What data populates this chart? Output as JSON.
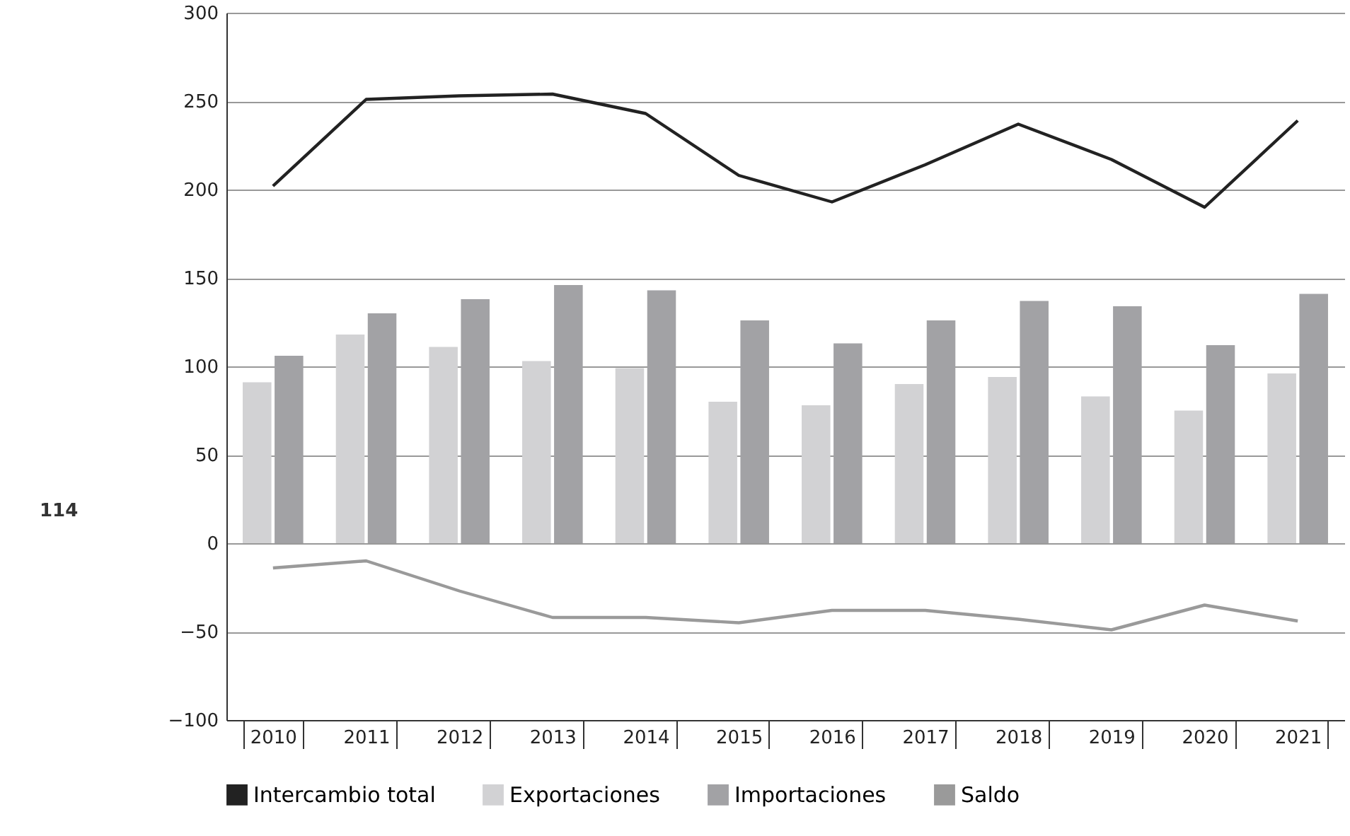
{
  "chart_data": {
    "type": "bar",
    "categories": [
      "2010",
      "2011",
      "2012",
      "2013",
      "2014",
      "2015",
      "2016",
      "2017",
      "2018",
      "2019",
      "2020",
      "2021"
    ],
    "series": [
      {
        "name": "Intercambio total",
        "type": "line",
        "color": "#222222",
        "values": [
          202,
          251,
          253,
          254,
          243,
          208,
          193,
          214,
          237,
          217,
          190,
          239
        ]
      },
      {
        "name": "Exportaciones",
        "color": "#d2d2d4",
        "values": [
          91,
          118,
          111,
          103,
          99,
          80,
          78,
          90,
          94,
          83,
          75,
          96
        ]
      },
      {
        "name": "Importaciones",
        "color": "#a2a2a5",
        "values": [
          106,
          130,
          138,
          146,
          143,
          126,
          113,
          126,
          137,
          134,
          112,
          141
        ]
      },
      {
        "name": "Saldo",
        "type": "line",
        "color": "#9a9a9a",
        "values": [
          -14,
          -10,
          -27,
          -42,
          -42,
          -45,
          -38,
          -38,
          -43,
          -49,
          -35,
          -44
        ]
      }
    ],
    "ylim": [
      -100,
      300
    ],
    "yticks": [
      -100,
      -50,
      0,
      50,
      100,
      150,
      200,
      250,
      300
    ],
    "grid": "y",
    "legend": "bottom",
    "annotations": [
      "114"
    ]
  }
}
